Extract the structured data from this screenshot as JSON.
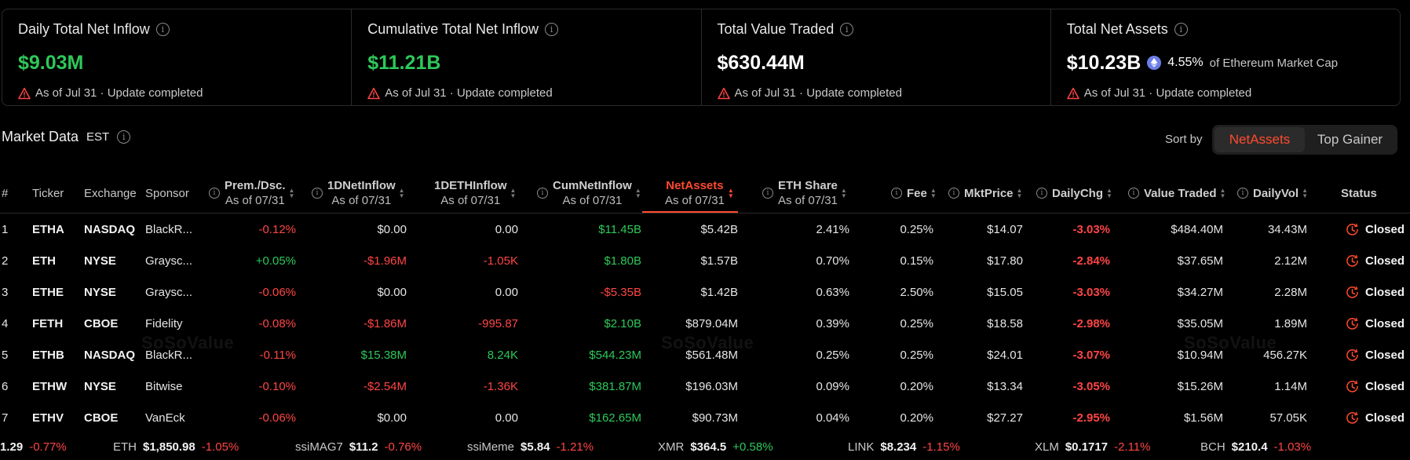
{
  "stats": [
    {
      "title": "Daily Total Net Inflow",
      "value": "$9.03M",
      "color": "green",
      "note": "As of Jul 31 · Update completed"
    },
    {
      "title": "Cumulative Total Net Inflow",
      "value": "$11.21B",
      "color": "green",
      "note": "As of Jul 31 · Update completed"
    },
    {
      "title": "Total Value Traded",
      "value": "$630.44M",
      "color": "white",
      "note": "As of Jul 31 · Update completed"
    },
    {
      "title": "Total Net Assets",
      "value": "$10.23B",
      "color": "white",
      "pct": "4.55%",
      "pct_suffix": "of Ethereum Market Cap",
      "note": "As of Jul 31 · Update completed"
    }
  ],
  "market": {
    "title": "Market Data",
    "timezone": "EST",
    "sort_by_label": "Sort by",
    "sort_options": [
      "NetAssets",
      "Top Gainer"
    ],
    "active_sort": "NetAssets"
  },
  "table": {
    "headers": {
      "num": "#",
      "ticker": "Ticker",
      "exchange": "Exchange",
      "sponsor": "Sponsor",
      "prem": "Prem./Dsc.",
      "prem_sub": "As of 07/31",
      "netinflow": "1DNetInflow",
      "netinflow_sub": "As of 07/31",
      "ethinflow": "1DETHInflow",
      "ethinflow_sub": "As of 07/31",
      "cum": "CumNetInflow",
      "cum_sub": "As of 07/31",
      "netassets": "NetAssets",
      "netassets_sub": "As of 07/31",
      "share": "ETH Share",
      "share_sub": "As of 07/31",
      "fee": "Fee",
      "mktprice": "MktPrice",
      "dailychg": "DailyChg",
      "valuetraded": "Value Traded",
      "dailyvol": "DailyVol",
      "status": "Status"
    },
    "rows": [
      {
        "num": "1",
        "ticker": "ETHA",
        "exchange": "NASDAQ",
        "sponsor": "BlackR...",
        "prem": "-0.12%",
        "netinflow": "$0.00",
        "ethinflow": "0.00",
        "cum": "$11.45B",
        "netassets": "$5.42B",
        "share": "2.41%",
        "fee": "0.25%",
        "mktprice": "$14.07",
        "dailychg": "-3.03%",
        "valuetraded": "$484.40M",
        "dailyvol": "34.43M",
        "status": "Closed"
      },
      {
        "num": "2",
        "ticker": "ETH",
        "exchange": "NYSE",
        "sponsor": "Graysc...",
        "prem": "+0.05%",
        "netinflow": "-$1.96M",
        "ethinflow": "-1.05K",
        "cum": "$1.80B",
        "netassets": "$1.57B",
        "share": "0.70%",
        "fee": "0.15%",
        "mktprice": "$17.80",
        "dailychg": "-2.84%",
        "valuetraded": "$37.65M",
        "dailyvol": "2.12M",
        "status": "Closed"
      },
      {
        "num": "3",
        "ticker": "ETHE",
        "exchange": "NYSE",
        "sponsor": "Graysc...",
        "prem": "-0.06%",
        "netinflow": "$0.00",
        "ethinflow": "0.00",
        "cum": "-$5.35B",
        "netassets": "$1.42B",
        "share": "0.63%",
        "fee": "2.50%",
        "mktprice": "$15.05",
        "dailychg": "-3.03%",
        "valuetraded": "$34.27M",
        "dailyvol": "2.28M",
        "status": "Closed"
      },
      {
        "num": "4",
        "ticker": "FETH",
        "exchange": "CBOE",
        "sponsor": "Fidelity",
        "prem": "-0.08%",
        "netinflow": "-$1.86M",
        "ethinflow": "-995.87",
        "cum": "$2.10B",
        "netassets": "$879.04M",
        "share": "0.39%",
        "fee": "0.25%",
        "mktprice": "$18.58",
        "dailychg": "-2.98%",
        "valuetraded": "$35.05M",
        "dailyvol": "1.89M",
        "status": "Closed"
      },
      {
        "num": "5",
        "ticker": "ETHB",
        "exchange": "NASDAQ",
        "sponsor": "BlackR...",
        "prem": "-0.11%",
        "netinflow": "$15.38M",
        "ethinflow": "8.24K",
        "cum": "$544.23M",
        "netassets": "$561.48M",
        "share": "0.25%",
        "fee": "0.25%",
        "mktprice": "$24.01",
        "dailychg": "-3.07%",
        "valuetraded": "$10.94M",
        "dailyvol": "456.27K",
        "status": "Closed"
      },
      {
        "num": "6",
        "ticker": "ETHW",
        "exchange": "NYSE",
        "sponsor": "Bitwise",
        "prem": "-0.10%",
        "netinflow": "-$2.54M",
        "ethinflow": "-1.36K",
        "cum": "$381.87M",
        "netassets": "$196.03M",
        "share": "0.09%",
        "fee": "0.20%",
        "mktprice": "$13.34",
        "dailychg": "-3.05%",
        "valuetraded": "$15.26M",
        "dailyvol": "1.14M",
        "status": "Closed"
      },
      {
        "num": "7",
        "ticker": "ETHV",
        "exchange": "CBOE",
        "sponsor": "VanEck",
        "prem": "-0.06%",
        "netinflow": "$0.00",
        "ethinflow": "0.00",
        "cum": "$162.65M",
        "netassets": "$90.73M",
        "share": "0.04%",
        "fee": "0.20%",
        "mktprice": "$27.27",
        "dailychg": "-2.95%",
        "valuetraded": "$1.56M",
        "dailyvol": "57.05K",
        "status": "Closed"
      }
    ]
  },
  "watermark": "SoSoValue",
  "ticker_bar": [
    {
      "symbol": "",
      "price": "1.29",
      "change": "-0.77%"
    },
    {
      "symbol": "ETH",
      "price": "$1,850.98",
      "change": "-1.05%"
    },
    {
      "symbol": "ssiMAG7",
      "price": "$11.2",
      "change": "-0.76%"
    },
    {
      "symbol": "ssiMeme",
      "price": "$5.84",
      "change": "-1.21%"
    },
    {
      "symbol": "XMR",
      "price": "$364.5",
      "change": "+0.58%"
    },
    {
      "symbol": "LINK",
      "price": "$8.234",
      "change": "-1.15%"
    },
    {
      "symbol": "XLM",
      "price": "$0.1717",
      "change": "-2.11%"
    },
    {
      "symbol": "BCH",
      "price": "$210.4",
      "change": "-1.03%"
    }
  ],
  "colors": {
    "positive": "#2ec85a",
    "negative": "#ff4545",
    "accent": "#ff4a2e"
  }
}
